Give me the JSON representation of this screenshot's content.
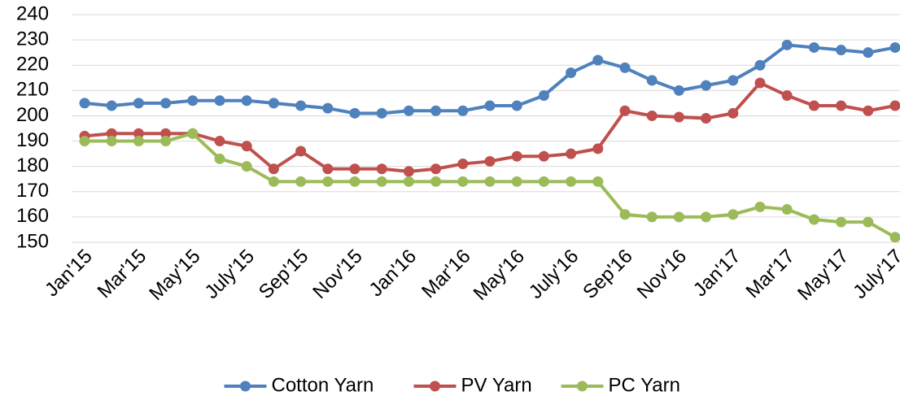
{
  "chart_data": {
    "type": "line",
    "categories": [
      "Jan'15",
      null,
      "Mar'15",
      null,
      "May'15",
      null,
      "July'15",
      null,
      "Sep'15",
      null,
      "Nov'15",
      null,
      "Jan'16",
      null,
      "Mar'16",
      null,
      "May'16",
      null,
      "July'16",
      null,
      "Sep'16",
      null,
      "Nov'16",
      null,
      "Jan'17",
      null,
      "Mar'17",
      null,
      "May'17",
      null,
      "July'17"
    ],
    "series": [
      {
        "name": "Cotton Yarn",
        "color": "#4f81bd",
        "values": [
          205,
          204,
          205,
          205,
          206,
          206,
          206,
          205,
          204,
          203,
          201,
          201,
          202,
          202,
          202,
          204,
          204,
          208,
          217,
          222,
          219,
          214,
          210,
          212,
          214,
          220,
          228,
          227,
          226,
          225,
          227
        ]
      },
      {
        "name": "PV Yarn",
        "color": "#c0504d",
        "values": [
          192,
          193,
          193,
          193,
          193,
          190,
          188,
          179,
          186,
          179,
          179,
          179,
          178,
          179,
          181,
          182,
          184,
          184,
          185,
          187,
          202,
          200,
          199.5,
          199,
          201,
          213,
          208,
          204,
          204,
          202,
          204
        ]
      },
      {
        "name": "PC Yarn",
        "color": "#9bbb59",
        "values": [
          190,
          190,
          190,
          190,
          193,
          183,
          180,
          174,
          174,
          174,
          174,
          174,
          174,
          174,
          174,
          174,
          174,
          174,
          174,
          174,
          161,
          160,
          160,
          160,
          161,
          164,
          163,
          159,
          158,
          158,
          152
        ]
      }
    ],
    "ylim": [
      150,
      240
    ],
    "yticks": [
      150,
      160,
      170,
      180,
      190,
      200,
      210,
      220,
      230,
      240
    ],
    "grid": true,
    "legend": "bottom"
  }
}
